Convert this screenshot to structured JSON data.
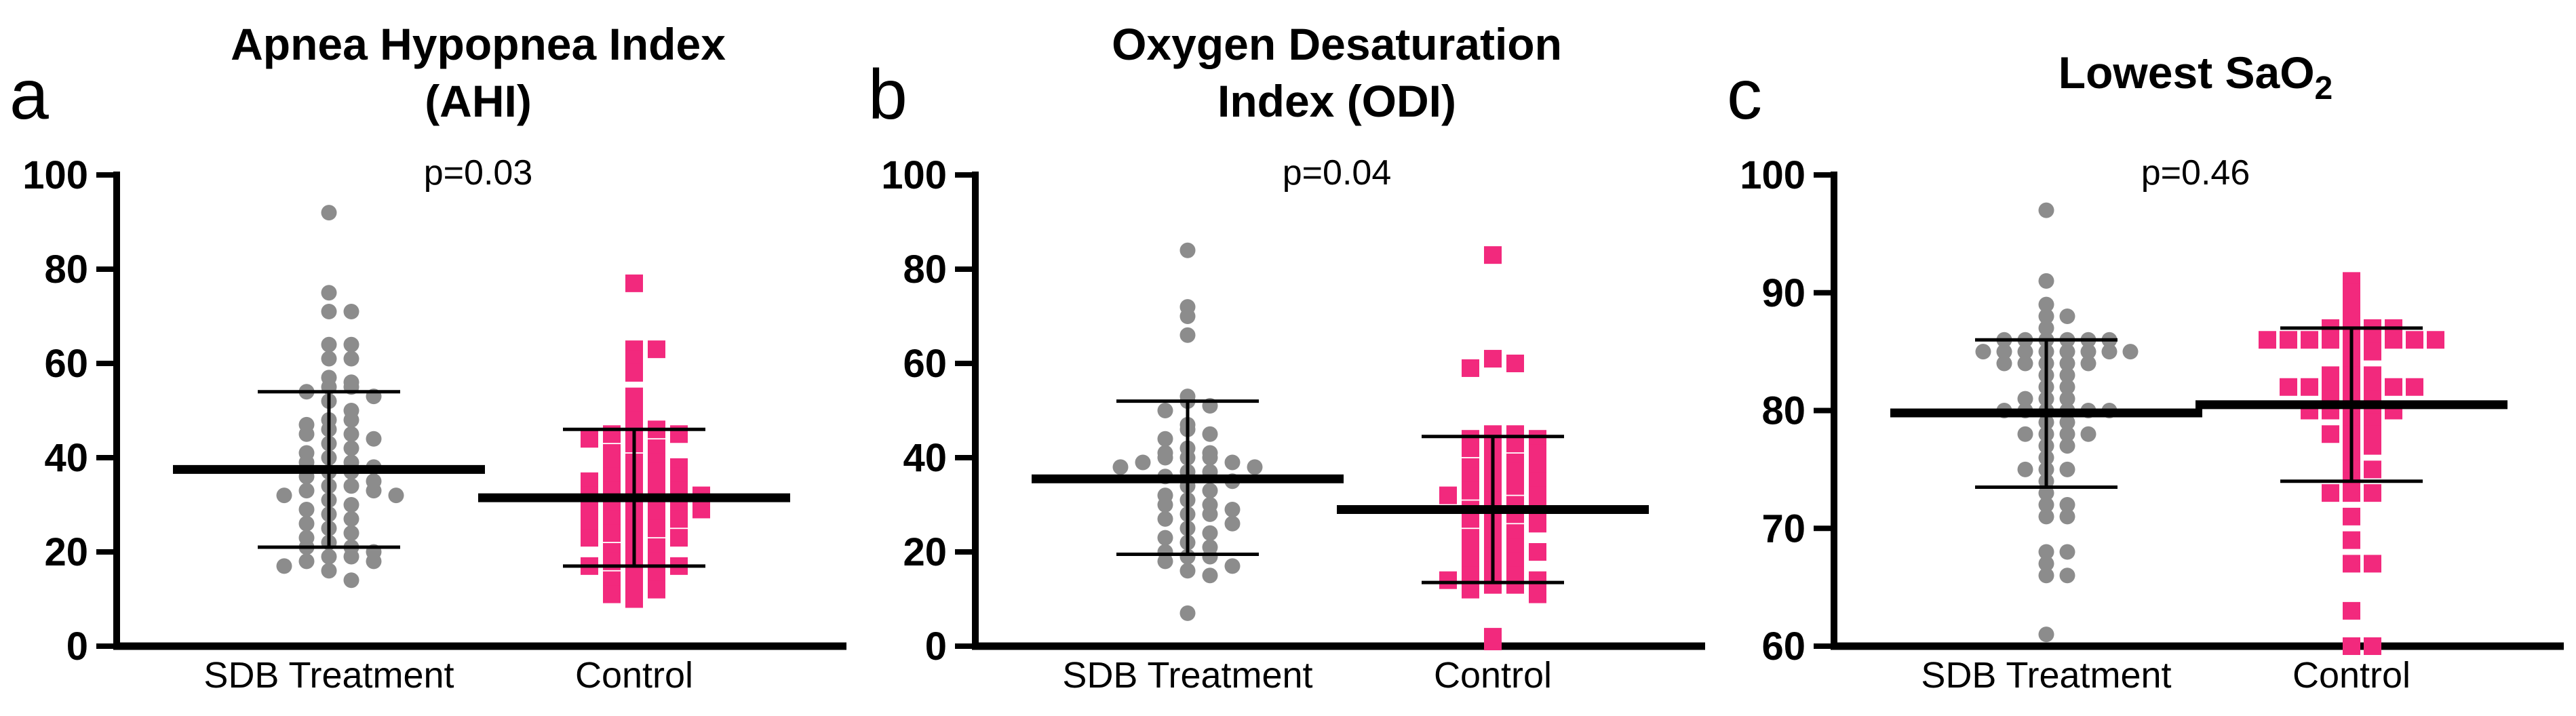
{
  "figure_title": "Sleep study outcomes: SDB Treatment vs Control",
  "colors": {
    "treatment_marker": "#8C8C8C",
    "control_marker": "#F2297D",
    "axis": "#000000",
    "background": "#FFFFFF"
  },
  "chart_data": [
    {
      "type": "scatter",
      "panel_letter": "a",
      "title_lines": [
        "Apnea Hypopnea Index",
        "(AHI)"
      ],
      "p_value": "p=0.03",
      "ylim": [
        0,
        100
      ],
      "yticks": [
        0,
        20,
        40,
        60,
        80,
        100
      ],
      "categories": [
        "SDB Treatment",
        "Control"
      ],
      "legend_position": "none",
      "grid": false,
      "swarm_bin": 3,
      "series": [
        {
          "name": "SDB Treatment",
          "marker": "circle",
          "color": "#8C8C8C",
          "median": 37.5,
          "iqr": [
            21,
            54
          ],
          "values": [
            92,
            75,
            71,
            71,
            64,
            64,
            61,
            61,
            57,
            56,
            55,
            55,
            54,
            53,
            52,
            50,
            48,
            48,
            47,
            46,
            45,
            45,
            44,
            43,
            42,
            41,
            40,
            39,
            39,
            38,
            37,
            37,
            36,
            35,
            34,
            34,
            33,
            33,
            32,
            32,
            31,
            30,
            29,
            28,
            27,
            26,
            25,
            24,
            23,
            22,
            21,
            21,
            20,
            19,
            19,
            18,
            18,
            17,
            16,
            14
          ]
        },
        {
          "name": "Control",
          "marker": "square",
          "color": "#F2297D",
          "median": 31.5,
          "iqr": [
            17,
            46
          ],
          "values": [
            77,
            63,
            63,
            61,
            58,
            53,
            51,
            48,
            46,
            46,
            45,
            45,
            44,
            43,
            42,
            41,
            39,
            39,
            38,
            38,
            37,
            37,
            36,
            36,
            35,
            34,
            34,
            33,
            33,
            32,
            32,
            31,
            31,
            30,
            30,
            29,
            29,
            28,
            28,
            27,
            27,
            26,
            25,
            25,
            24,
            23,
            23,
            22,
            21,
            20,
            19,
            18,
            18,
            17,
            17,
            16,
            15,
            14,
            13,
            12,
            11,
            10
          ]
        }
      ]
    },
    {
      "type": "scatter",
      "panel_letter": "b",
      "title_lines": [
        "Oxygen Desaturation",
        "Index (ODI)"
      ],
      "p_value": "p=0.04",
      "ylim": [
        0,
        100
      ],
      "yticks": [
        0,
        20,
        40,
        60,
        80,
        100
      ],
      "categories": [
        "SDB Treatment",
        "Control"
      ],
      "legend_position": "none",
      "grid": false,
      "swarm_bin": 3,
      "series": [
        {
          "name": "SDB Treatment",
          "marker": "circle",
          "color": "#8C8C8C",
          "median": 35.5,
          "iqr": [
            19.5,
            52
          ],
          "values": [
            84,
            72,
            70,
            66,
            53,
            52,
            51,
            50,
            47,
            46,
            45,
            44,
            42,
            41,
            41,
            40,
            40,
            40,
            39,
            39,
            38,
            38,
            37,
            37,
            36,
            35,
            34,
            33,
            32,
            31,
            30,
            30,
            29,
            28,
            28,
            27,
            26,
            25,
            24,
            23,
            22,
            21,
            20,
            19,
            19,
            18,
            17,
            16,
            15,
            7
          ]
        },
        {
          "name": "Control",
          "marker": "square",
          "color": "#F2297D",
          "median": 29,
          "iqr": [
            13.5,
            44.5
          ],
          "values": [
            83,
            61,
            60,
            59,
            45,
            45,
            44,
            44,
            43,
            43,
            42,
            41,
            40,
            39,
            38,
            38,
            37,
            37,
            36,
            35,
            34,
            34,
            33,
            32,
            32,
            31,
            30,
            29,
            29,
            28,
            28,
            27,
            26,
            25,
            24,
            23,
            22,
            21,
            20,
            20,
            19,
            18,
            17,
            16,
            15,
            15,
            14,
            14,
            13,
            13,
            12,
            11,
            2,
            1
          ]
        }
      ]
    },
    {
      "type": "scatter",
      "panel_letter": "c",
      "title_parts": [
        {
          "text": "Lowest SaO"
        },
        {
          "text": "2",
          "sub": true
        }
      ],
      "p_value": "p=0.46",
      "ylim": [
        60,
        100
      ],
      "yticks": [
        60,
        70,
        80,
        90,
        100
      ],
      "categories": [
        "SDB Treatment",
        "Control"
      ],
      "legend_position": "none",
      "grid": false,
      "swarm_bin": 1,
      "series": [
        {
          "name": "SDB Treatment",
          "marker": "circle",
          "color": "#8C8C8C",
          "median": 79.8,
          "iqr": [
            73.5,
            86
          ],
          "values": [
            97,
            91,
            89,
            88,
            88,
            87,
            86,
            86,
            86,
            86,
            86,
            86,
            85,
            85,
            85,
            85,
            85,
            85,
            85,
            85,
            84,
            84,
            84,
            84,
            84,
            83,
            83,
            82,
            82,
            81,
            81,
            81,
            80,
            80,
            80,
            80,
            80,
            80,
            79,
            79,
            78,
            78,
            78,
            78,
            77,
            77,
            76,
            75,
            75,
            75,
            74,
            73,
            72,
            72,
            71,
            71,
            68,
            68,
            67,
            66,
            66,
            61
          ]
        },
        {
          "name": "Control",
          "marker": "square",
          "color": "#F2297D",
          "median": 80.5,
          "iqr": [
            74,
            87
          ],
          "values": [
            91,
            90,
            89,
            88,
            87,
            87,
            87,
            87,
            86,
            86,
            86,
            86,
            86,
            86,
            86,
            86,
            86,
            85,
            85,
            84,
            83,
            83,
            83,
            82,
            82,
            82,
            82,
            82,
            82,
            82,
            81,
            81,
            81,
            80,
            80,
            80,
            80,
            80,
            79,
            79,
            78,
            78,
            78,
            77,
            77,
            76,
            75,
            75,
            74,
            73,
            73,
            73,
            71,
            69,
            67,
            67,
            63,
            60,
            60
          ]
        }
      ]
    }
  ]
}
